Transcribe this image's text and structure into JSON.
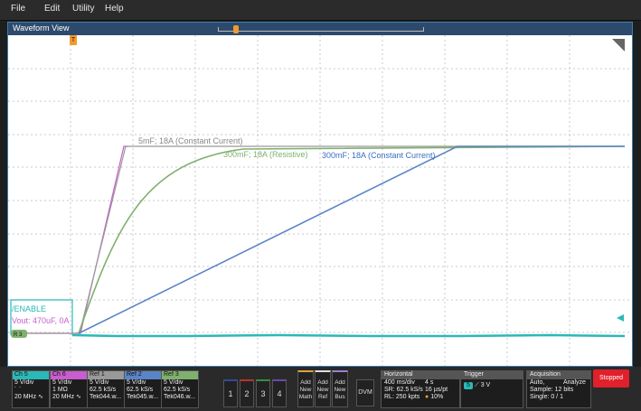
{
  "menu": {
    "file": "File",
    "edit": "Edit",
    "utility": "Utility",
    "help": "Help"
  },
  "waveform_view": {
    "title": "Waveform View"
  },
  "traces": {
    "label_5mf": "5mF; 18A (Constant Current)",
    "label_300_res": "300mF; 18A (Resistive)",
    "label_300_cc": "300mF; 18A (Constant Current)",
    "enable": "/ENABLE",
    "vout": "Vout: 470uF, 0A",
    "ref_marker": "R 3",
    "trig_marker": "T"
  },
  "colors": {
    "ch5": "#2bb8b8",
    "ch6": "#c85dd0",
    "ref1": "#999999",
    "ref2": "#5a84c8",
    "ref3": "#7fb06e",
    "stopped": "#e0202a",
    "trigger": "#f19a2a"
  },
  "badges": [
    {
      "title": "Ch 5",
      "l1": "5 V/div",
      "l2": "⌒",
      "l3": "20 MHz  ∿"
    },
    {
      "title": "Ch 6",
      "l1": "5 V/div",
      "l2": "1 MΩ",
      "l3": "20 MHz  ∿"
    },
    {
      "title": "Ref 1",
      "l1": "5 V/div",
      "l2": "62.5 kS/s",
      "l3": "Tek044.w..."
    },
    {
      "title": "Ref 2",
      "l1": "5 V/div",
      "l2": "62.5 kS/s",
      "l3": "Tek045.w..."
    },
    {
      "title": "Ref 3",
      "l1": "5 V/div",
      "l2": "62.5 kS/s",
      "l3": "Tek046.w..."
    }
  ],
  "buttons": {
    "b1": "1",
    "b2": "2",
    "b3": "3",
    "b4": "4",
    "math": "Add New Math",
    "ref": "Add New Ref",
    "bus": "Add New Bus",
    "dvm": "DVM"
  },
  "horizontal": {
    "title": "Horizontal",
    "r1a": "400 ms/div",
    "r1b": "4 s",
    "r2a": "SR: 62.5 kS/s",
    "r2b": "16 µs/pt",
    "r3a": "RL: 250 kpts",
    "r3b": "10%"
  },
  "trigger": {
    "title": "Trigger",
    "channel": "5",
    "level": "3 V"
  },
  "acquisition": {
    "title": "Acquisition",
    "r1a": "Auto,",
    "r1b": "Analyze",
    "r2": "Sample: 12 bits",
    "r3": "Single: 0 / 1"
  },
  "stopped": "Stopped"
}
